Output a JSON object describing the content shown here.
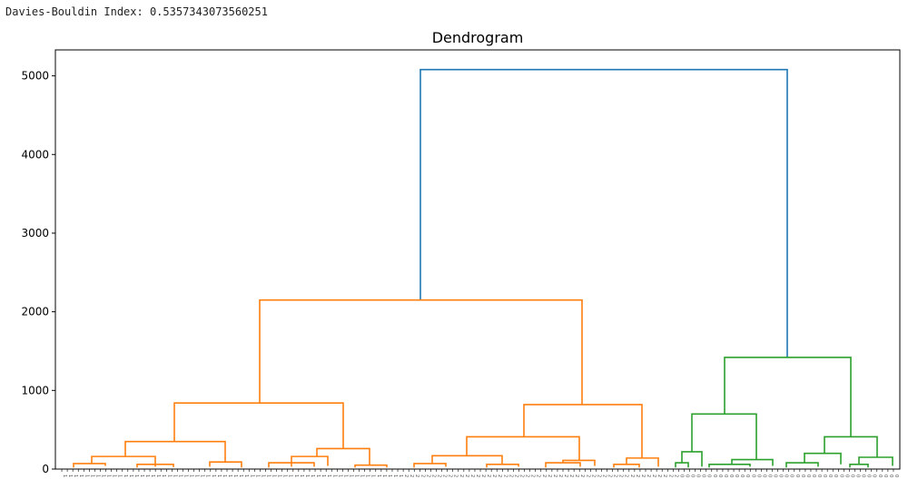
{
  "output_text": "Davies-Bouldin Index: 0.5357343073560251",
  "chart_data": {
    "type": "dendrogram",
    "title": "Dendrogram",
    "xlabel": "",
    "ylabel": "",
    "ylim": [
      0,
      5330
    ],
    "xlim": [
      0,
      930
    ],
    "yticks": [
      0,
      1000,
      2000,
      3000,
      4000,
      5000
    ],
    "colors": {
      "root": "#1f77b4",
      "orange": "#ff7f0e",
      "green": "#2ca02c"
    },
    "leaf_label_groups": [
      {
        "label": "1",
        "count": 62
      },
      {
        "label": "2",
        "count": 50
      },
      {
        "label": "0",
        "count": 40
      }
    ],
    "links": [
      {
        "x1": 402,
        "x2": 806,
        "hl": 2150,
        "hr": 1420,
        "h": 5080,
        "c": "root"
      },
      {
        "x1": 225,
        "x2": 580,
        "hl": 840,
        "hr": 820,
        "h": 2150,
        "c": "orange"
      },
      {
        "x1": 131,
        "x2": 317,
        "hl": 350,
        "hr": 260,
        "h": 840,
        "c": "orange"
      },
      {
        "x1": 77,
        "x2": 187,
        "hl": 160,
        "hr": 90,
        "h": 350,
        "c": "orange"
      },
      {
        "x1": 40,
        "x2": 110,
        "hl": 70,
        "hr": 30,
        "h": 160,
        "c": "orange"
      },
      {
        "x1": 170,
        "x2": 205,
        "hl": 30,
        "hr": 20,
        "h": 90,
        "c": "orange"
      },
      {
        "x1": 20,
        "x2": 55,
        "hl": 20,
        "hr": 40,
        "h": 70,
        "c": "orange"
      },
      {
        "x1": 90,
        "x2": 130,
        "hl": 20,
        "hr": 25,
        "h": 60,
        "c": "orange"
      },
      {
        "x1": 288,
        "x2": 346,
        "hl": 160,
        "hr": 50,
        "h": 260,
        "c": "orange"
      },
      {
        "x1": 260,
        "x2": 300,
        "hl": 30,
        "hr": 40,
        "h": 160,
        "c": "orange"
      },
      {
        "x1": 235,
        "x2": 285,
        "hl": 20,
        "hr": 30,
        "h": 80,
        "c": "orange"
      },
      {
        "x1": 330,
        "x2": 365,
        "hl": 20,
        "hr": 20,
        "h": 50,
        "c": "orange"
      },
      {
        "x1": 516,
        "x2": 646,
        "hl": 410,
        "hr": 140,
        "h": 820,
        "c": "orange"
      },
      {
        "x1": 453,
        "x2": 577,
        "hl": 170,
        "hr": 110,
        "h": 410,
        "c": "orange"
      },
      {
        "x1": 415,
        "x2": 492,
        "hl": 70,
        "hr": 60,
        "h": 170,
        "c": "orange"
      },
      {
        "x1": 395,
        "x2": 430,
        "hl": 20,
        "hr": 30,
        "h": 70,
        "c": "orange"
      },
      {
        "x1": 475,
        "x2": 510,
        "hl": 20,
        "hr": 30,
        "h": 60,
        "c": "orange"
      },
      {
        "x1": 559,
        "x2": 594,
        "hl": 80,
        "hr": 40,
        "h": 110,
        "c": "orange"
      },
      {
        "x1": 540,
        "x2": 578,
        "hl": 20,
        "hr": 30,
        "h": 80,
        "c": "orange"
      },
      {
        "x1": 629,
        "x2": 664,
        "hl": 60,
        "hr": 30,
        "h": 140,
        "c": "orange"
      },
      {
        "x1": 615,
        "x2": 643,
        "hl": 20,
        "hr": 20,
        "h": 60,
        "c": "orange"
      },
      {
        "x1": 737,
        "x2": 876,
        "hl": 700,
        "hr": 410,
        "h": 1420,
        "c": "green"
      },
      {
        "x1": 701,
        "x2": 772,
        "hl": 220,
        "hr": 120,
        "h": 700,
        "c": "green"
      },
      {
        "x1": 690,
        "x2": 712,
        "hl": 80,
        "hr": 30,
        "h": 220,
        "c": "green"
      },
      {
        "x1": 683,
        "x2": 697,
        "hl": 20,
        "hr": 20,
        "h": 80,
        "c": "green"
      },
      {
        "x1": 745,
        "x2": 790,
        "hl": 60,
        "hr": 40,
        "h": 120,
        "c": "green"
      },
      {
        "x1": 720,
        "x2": 765,
        "hl": 20,
        "hr": 30,
        "h": 60,
        "c": "green"
      },
      {
        "x1": 847,
        "x2": 905,
        "hl": 200,
        "hr": 150,
        "h": 410,
        "c": "green"
      },
      {
        "x1": 825,
        "x2": 865,
        "hl": 80,
        "hr": 60,
        "h": 200,
        "c": "green"
      },
      {
        "x1": 805,
        "x2": 840,
        "hl": 20,
        "hr": 30,
        "h": 80,
        "c": "green"
      },
      {
        "x1": 885,
        "x2": 922,
        "hl": 60,
        "hr": 40,
        "h": 150,
        "c": "green"
      },
      {
        "x1": 875,
        "x2": 895,
        "hl": 20,
        "hr": 20,
        "h": 60,
        "c": "green"
      }
    ]
  }
}
